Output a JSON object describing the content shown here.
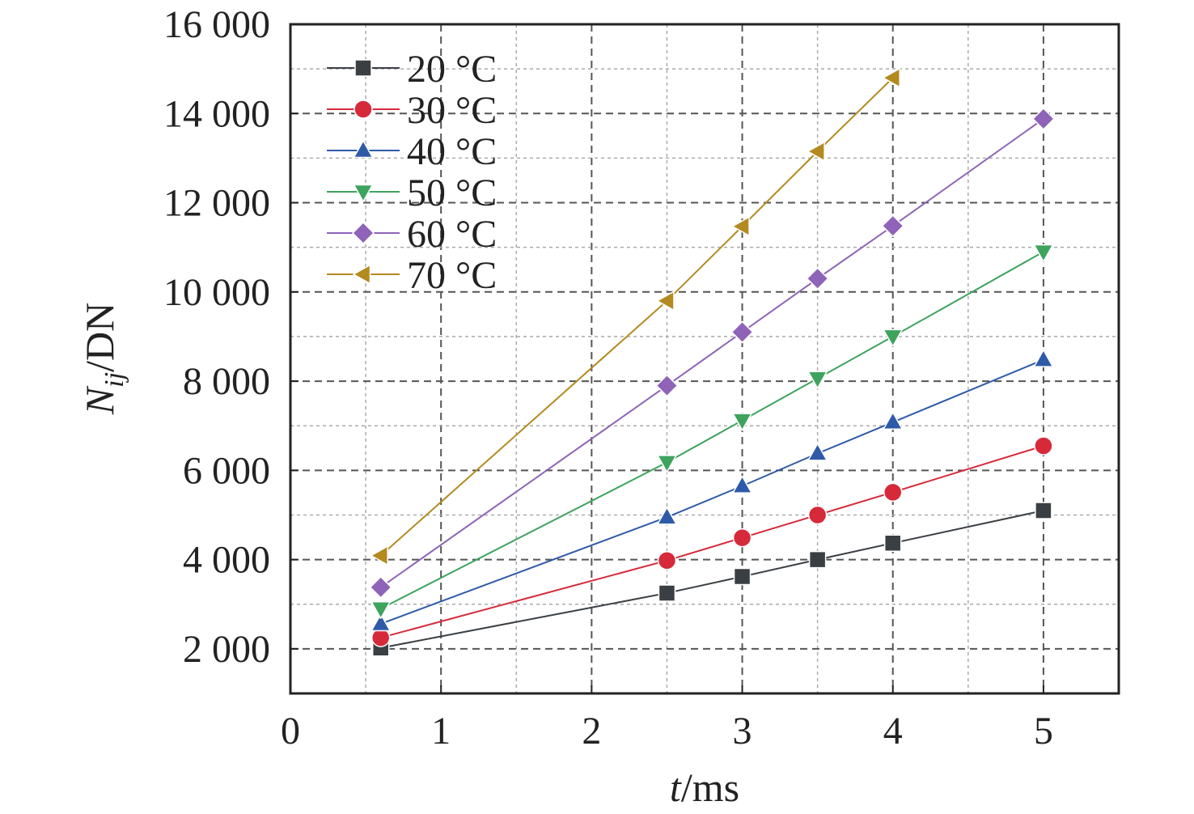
{
  "chart_data": {
    "type": "line",
    "title": "",
    "xlabel": {
      "main": "t",
      "unit": "/ms"
    },
    "ylabel": {
      "main": "N",
      "sub": "ij",
      "unit": "/DN"
    },
    "xlim": [
      0,
      5.5
    ],
    "ylim": [
      1000,
      16000
    ],
    "x_ticks": [
      0,
      1,
      2,
      3,
      4,
      5
    ],
    "x_tick_labels": [
      "0",
      "1",
      "2",
      "3",
      "4",
      "5"
    ],
    "y_ticks": [
      2000,
      4000,
      6000,
      8000,
      10000,
      12000,
      14000,
      16000
    ],
    "y_tick_labels": [
      "2 000",
      "4 000",
      "6 000",
      "8 000",
      "10 000",
      "12 000",
      "14 000",
      "16 000"
    ],
    "grid": true,
    "legend_position": "top-left",
    "series": [
      {
        "name": "20 °C",
        "color": "#3a3f44",
        "marker": "square",
        "x": [
          0.6,
          2.5,
          3,
          3.5,
          4,
          5
        ],
        "y": [
          2020,
          3250,
          3620,
          4000,
          4370,
          5100
        ]
      },
      {
        "name": "30 °C",
        "color": "#d62a3a",
        "marker": "circle",
        "x": [
          0.6,
          2.5,
          3,
          3.5,
          4,
          5
        ],
        "y": [
          2250,
          3980,
          4490,
          5000,
          5510,
          6550
        ]
      },
      {
        "name": "40 °C",
        "color": "#2e5aa8",
        "marker": "triangle-up",
        "x": [
          0.6,
          2.5,
          3,
          3.5,
          4,
          5
        ],
        "y": [
          2560,
          4950,
          5650,
          6380,
          7080,
          8480
        ]
      },
      {
        "name": "50 °C",
        "color": "#3da35d",
        "marker": "triangle-down",
        "x": [
          0.6,
          2.5,
          3,
          3.5,
          4,
          5
        ],
        "y": [
          2900,
          6180,
          7120,
          8060,
          9000,
          10900
        ]
      },
      {
        "name": "60 °C",
        "color": "#8e63b8",
        "marker": "diamond",
        "x": [
          0.6,
          2.5,
          3,
          3.5,
          4,
          5
        ],
        "y": [
          3380,
          7900,
          9100,
          10300,
          11480,
          13880
        ]
      },
      {
        "name": "70 °C",
        "color": "#b38a1f",
        "marker": "triangle-left",
        "x": [
          0.6,
          2.5,
          3,
          3.5,
          4
        ],
        "y": [
          4090,
          9800,
          11470,
          13150,
          14800
        ]
      }
    ]
  }
}
